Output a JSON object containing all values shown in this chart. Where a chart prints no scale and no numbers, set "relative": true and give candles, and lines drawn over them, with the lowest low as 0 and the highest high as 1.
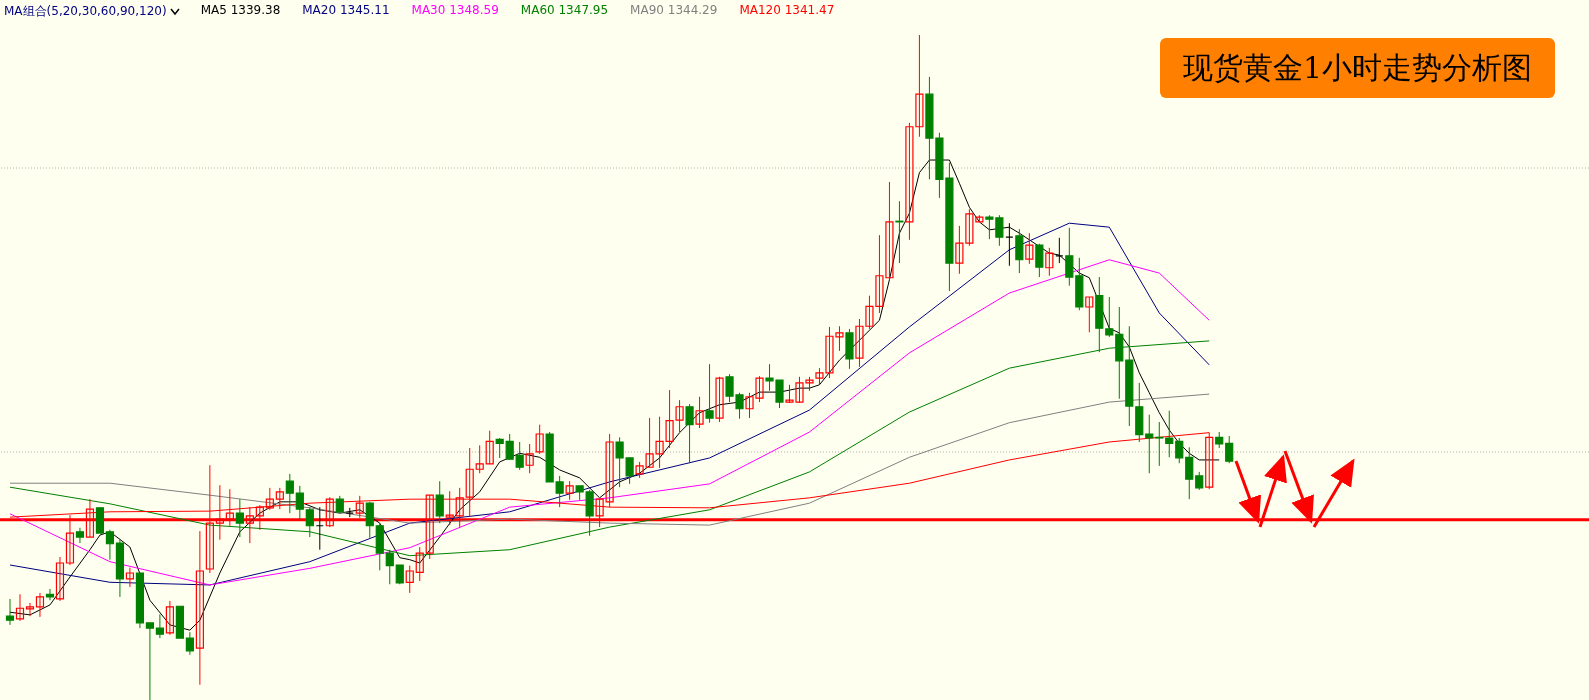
{
  "chart_data": {
    "type": "candlestick",
    "title": "现货黄金1小时走势分析图",
    "legend_title": "MA组合(5,20,30,60,90,120)",
    "relative": true,
    "categories": [
      null,
      null,
      null,
      null,
      null,
      null,
      null,
      null,
      null,
      null,
      null,
      null,
      null,
      null,
      null,
      null,
      null,
      null,
      null,
      null,
      null,
      null,
      null,
      null,
      null,
      null,
      null,
      null,
      null,
      null,
      null,
      null,
      null,
      null,
      null,
      null,
      null,
      null,
      null,
      null,
      null,
      null,
      null,
      null,
      null,
      null,
      null,
      null,
      null,
      null,
      null,
      null,
      null,
      null,
      null,
      null,
      null,
      null,
      null,
      null,
      null,
      null,
      null,
      null,
      null,
      null,
      null,
      null,
      null,
      null,
      null,
      null,
      null,
      null,
      null,
      null,
      null,
      null,
      null,
      null,
      null,
      null,
      null,
      null,
      null,
      null,
      null,
      null,
      null,
      null,
      null,
      null,
      null,
      null,
      null,
      null,
      null,
      null,
      null,
      null,
      null,
      null,
      null,
      null,
      null,
      null,
      null,
      null,
      null,
      null,
      null,
      null,
      null,
      null,
      null,
      null,
      null,
      null,
      null,
      null,
      null,
      null,
      null
    ],
    "ohlc": [
      [
        0.126,
        0.152,
        0.113,
        0.12
      ],
      [
        0.122,
        0.159,
        0.119,
        0.138
      ],
      [
        0.137,
        0.146,
        0.126,
        0.14
      ],
      [
        0.14,
        0.161,
        0.125,
        0.155
      ],
      [
        0.159,
        0.167,
        0.15,
        0.155
      ],
      [
        0.152,
        0.215,
        0.149,
        0.206
      ],
      [
        0.206,
        0.278,
        0.203,
        0.251
      ],
      [
        0.253,
        0.259,
        0.236,
        0.245
      ],
      [
        0.245,
        0.302,
        0.245,
        0.287
      ],
      [
        0.289,
        0.29,
        0.251,
        0.251
      ],
      [
        0.253,
        0.256,
        0.211,
        0.235
      ],
      [
        0.236,
        0.241,
        0.155,
        0.182
      ],
      [
        0.182,
        0.199,
        0.17,
        0.191
      ],
      [
        0.191,
        0.192,
        0.108,
        0.116
      ],
      [
        0.116,
        0.116,
        0,
        0.108
      ],
      [
        0.108,
        0.129,
        0.093,
        0.099
      ],
      [
        0.101,
        0.149,
        0.098,
        0.14
      ],
      [
        0.141,
        0.141,
        0.093,
        0.093
      ],
      [
        0.093,
        0.102,
        0.068,
        0.074
      ],
      [
        0.078,
        0.254,
        0.023,
        0.194
      ],
      [
        0.197,
        0.353,
        0.191,
        0.266
      ],
      [
        0.266,
        0.323,
        0.241,
        0.272
      ],
      [
        0.272,
        0.317,
        0.262,
        0.281
      ],
      [
        0.281,
        0.302,
        0.245,
        0.266
      ],
      [
        0.266,
        0.29,
        0.236,
        0.277
      ],
      [
        0.277,
        0.293,
        0.256,
        0.29
      ],
      [
        0.289,
        0.319,
        0.286,
        0.302
      ],
      [
        0.302,
        0.319,
        0.287,
        0.313
      ],
      [
        0.329,
        0.34,
        0.281,
        0.311
      ],
      [
        0.311,
        0.322,
        0.271,
        0.287
      ],
      [
        0.286,
        0.29,
        0.245,
        0.262
      ],
      [
        0.262,
        0.29,
        0.226,
        0.262
      ],
      [
        0.262,
        0.305,
        0.26,
        0.302
      ],
      [
        0.302,
        0.307,
        0.281,
        0.283
      ],
      [
        0.281,
        0.289,
        0.275,
        0.281
      ],
      [
        0.281,
        0.307,
        0.274,
        0.296
      ],
      [
        0.296,
        0.298,
        0.244,
        0.262
      ],
      [
        0.262,
        0.265,
        0.195,
        0.221
      ],
      [
        0.221,
        0.226,
        0.174,
        0.202
      ],
      [
        0.203,
        0.203,
        0.174,
        0.176
      ],
      [
        0.177,
        0.202,
        0.161,
        0.194
      ],
      [
        0.192,
        0.23,
        0.179,
        0.221
      ],
      [
        0.221,
        0.308,
        0.212,
        0.308
      ],
      [
        0.308,
        0.329,
        0.266,
        0.277
      ],
      [
        0.275,
        0.314,
        0.263,
        0.278
      ],
      [
        0.277,
        0.319,
        0.26,
        0.304
      ],
      [
        0.305,
        0.379,
        0.275,
        0.347
      ],
      [
        0.347,
        0.383,
        0.341,
        0.355
      ],
      [
        0.355,
        0.405,
        0.355,
        0.389
      ],
      [
        0.392,
        0.394,
        0.364,
        0.386
      ],
      [
        0.389,
        0.4,
        0.362,
        0.362
      ],
      [
        0.368,
        0.388,
        0.346,
        0.35
      ],
      [
        0.353,
        0.385,
        0.341,
        0.37
      ],
      [
        0.373,
        0.414,
        0.37,
        0.4
      ],
      [
        0.4,
        0.403,
        0.328,
        0.328
      ],
      [
        0.328,
        0.337,
        0.29,
        0.311
      ],
      [
        0.311,
        0.329,
        0.301,
        0.322
      ],
      [
        0.322,
        0.322,
        0.301,
        0.313
      ],
      [
        0.313,
        0.316,
        0.247,
        0.277
      ],
      [
        0.277,
        0.302,
        0.26,
        0.302
      ],
      [
        0.298,
        0.4,
        0.29,
        0.388
      ],
      [
        0.388,
        0.395,
        0.32,
        0.364
      ],
      [
        0.364,
        0.365,
        0.325,
        0.337
      ],
      [
        0.34,
        0.358,
        0.334,
        0.352
      ],
      [
        0.35,
        0.424,
        0.35,
        0.37
      ],
      [
        0.37,
        0.426,
        0.349,
        0.389
      ],
      [
        0.389,
        0.466,
        0.379,
        0.42
      ],
      [
        0.421,
        0.451,
        0.403,
        0.441
      ],
      [
        0.441,
        0.445,
        0.356,
        0.414
      ],
      [
        0.415,
        0.456,
        0.409,
        0.435
      ],
      [
        0.435,
        0.505,
        0.417,
        0.424
      ],
      [
        0.424,
        0.486,
        0.418,
        0.484
      ],
      [
        0.486,
        0.49,
        0.448,
        0.457
      ],
      [
        0.459,
        0.462,
        0.423,
        0.438
      ],
      [
        0.438,
        0.462,
        0.424,
        0.456
      ],
      [
        0.454,
        0.487,
        0.448,
        0.484
      ],
      [
        0.484,
        0.505,
        0.465,
        0.48
      ],
      [
        0.481,
        0.481,
        0.439,
        0.448
      ],
      [
        0.448,
        0.474,
        0.447,
        0.451
      ],
      [
        0.448,
        0.486,
        0.447,
        0.477
      ],
      [
        0.477,
        0.486,
        0.465,
        0.481
      ],
      [
        0.484,
        0.499,
        0.475,
        0.492
      ],
      [
        0.492,
        0.561,
        0.484,
        0.547
      ],
      [
        0.546,
        0.562,
        0.525,
        0.552
      ],
      [
        0.552,
        0.558,
        0.498,
        0.513
      ],
      [
        0.514,
        0.573,
        0.501,
        0.562
      ],
      [
        0.562,
        0.608,
        0.558,
        0.592
      ],
      [
        0.592,
        0.699,
        0.582,
        0.638
      ],
      [
        0.635,
        0.779,
        0.63,
        0.719
      ],
      [
        0.72,
        0.75,
        0.657,
        0.719
      ],
      [
        0.719,
        0.868,
        0.692,
        0.862
      ],
      [
        0.862,
        1,
        0.847,
        0.911
      ],
      [
        0.911,
        0.937,
        0.783,
        0.845
      ],
      [
        0.845,
        0.853,
        0.755,
        0.783
      ],
      [
        0.785,
        0.808,
        0.615,
        0.657
      ],
      [
        0.657,
        0.713,
        0.641,
        0.687
      ],
      [
        0.687,
        0.738,
        0.683,
        0.731
      ],
      [
        0.719,
        0.729,
        0.719,
        0.726
      ],
      [
        0.726,
        0.729,
        0.693,
        0.723
      ],
      [
        0.725,
        0.729,
        0.683,
        0.696
      ],
      [
        0.696,
        0.717,
        0.653,
        0.696
      ],
      [
        0.698,
        0.708,
        0.642,
        0.662
      ],
      [
        0.663,
        0.702,
        0.656,
        0.684
      ],
      [
        0.684,
        0.686,
        0.636,
        0.651
      ],
      [
        0.65,
        0.68,
        0.638,
        0.672
      ],
      [
        0.668,
        0.695,
        0.657,
        0.668
      ],
      [
        0.668,
        0.71,
        0.623,
        0.636
      ],
      [
        0.638,
        0.665,
        0.586,
        0.591
      ],
      [
        0.591,
        0.606,
        0.553,
        0.606
      ],
      [
        0.608,
        0.636,
        0.523,
        0.559
      ],
      [
        0.558,
        0.606,
        0.546,
        0.549
      ],
      [
        0.55,
        0.591,
        0.453,
        0.51
      ],
      [
        0.511,
        0.562,
        0.412,
        0.442
      ],
      [
        0.441,
        0.477,
        0.388,
        0.399
      ],
      [
        0.4,
        0.429,
        0.341,
        0.394
      ],
      [
        0.395,
        0.418,
        0.352,
        0.394
      ],
      [
        0.394,
        0.435,
        0.365,
        0.386
      ],
      [
        0.389,
        0.394,
        0.356,
        0.364
      ],
      [
        0.365,
        0.38,
        0.302,
        0.332
      ],
      [
        0.337,
        0.343,
        0.316,
        0.319
      ],
      [
        0.32,
        0.402,
        0.317,
        0.395
      ],
      [
        0.395,
        0.403,
        0.379,
        0.385
      ],
      [
        0.386,
        0.397,
        0.356,
        0.359
      ]
    ],
    "colors": [
      "#008000",
      "#ff0000",
      "#ff0000",
      "#ff0000",
      "#008000",
      "#ff0000",
      "#ff0000",
      "#008000",
      "#ff0000",
      "#008000",
      "#008000",
      "#008000",
      "#ff0000",
      "#008000",
      "#008000",
      "#008000",
      "#ff0000",
      "#008000",
      "#008000",
      "#ff0000",
      "#ff0000",
      "#ff0000",
      "#ff0000",
      "#008000",
      "#ff0000",
      "#ff0000",
      "#ff0000",
      "#ff0000",
      "#008000",
      "#008000",
      "#008000",
      "#000000",
      "#ff0000",
      "#008000",
      "#000000",
      "#ff0000",
      "#008000",
      "#008000",
      "#008000",
      "#008000",
      "#ff0000",
      "#ff0000",
      "#ff0000",
      "#008000",
      "#ff0000",
      "#ff0000",
      "#ff0000",
      "#ff0000",
      "#ff0000",
      "#008000",
      "#008000",
      "#008000",
      "#ff0000",
      "#ff0000",
      "#008000",
      "#008000",
      "#ff0000",
      "#008000",
      "#008000",
      "#ff0000",
      "#ff0000",
      "#008000",
      "#008000",
      "#ff0000",
      "#ff0000",
      "#ff0000",
      "#ff0000",
      "#ff0000",
      "#008000",
      "#ff0000",
      "#008000",
      "#ff0000",
      "#008000",
      "#008000",
      "#ff0000",
      "#ff0000",
      "#008000",
      "#008000",
      "#ff0000",
      "#ff0000",
      "#ff0000",
      "#ff0000",
      "#ff0000",
      "#ff0000",
      "#008000",
      "#ff0000",
      "#ff0000",
      "#ff0000",
      "#ff0000",
      "#008000",
      "#ff0000",
      "#ff0000",
      "#008000",
      "#008000",
      "#008000",
      "#ff0000",
      "#ff0000",
      "#ff0000",
      "#008000",
      "#008000",
      "#000000",
      "#008000",
      "#ff0000",
      "#008000",
      "#ff0000",
      "#000000",
      "#008000",
      "#008000",
      "#ff0000",
      "#008000",
      "#008000",
      "#008000",
      "#008000",
      "#008000",
      "#008000",
      "#008000",
      "#008000",
      "#008000",
      "#008000",
      "#008000",
      "#ff0000",
      "#008000",
      "#008000"
    ],
    "series": [
      {
        "name": "MA5 1339.38",
        "type": "line",
        "color": "#000000",
        "values": [
          0.132,
          null,
          0.128,
          null,
          0.143,
          null,
          0.185,
          null,
          0.226,
          0.248,
          0.253,
          null,
          0.23,
          null,
          0.15,
          null,
          0.113,
          null,
          0.105,
          0.12,
          null,
          0.191,
          null,
          0.253,
          null,
          0.281,
          null,
          0.298,
          null,
          0.298,
          null,
          0.286,
          null,
          0.281,
          null,
          0.286,
          null,
          0.266,
          null,
          0.214,
          0.211,
          0.206,
          null,
          0.245,
          null,
          0.286,
          null,
          0.313,
          null,
          0.358,
          null,
          0.371,
          null,
          0.365,
          null,
          0.346,
          null,
          0.334,
          null,
          0.304,
          null,
          0.328,
          null,
          0.341,
          null,
          0.364,
          null,
          0.402,
          null,
          0.432,
          null,
          0.444,
          null,
          0.448,
          null,
          0.463,
          null,
          0.463,
          null,
          0.469,
          0.469,
          0.474,
          null,
          0.511,
          null,
          0.541,
          null,
          0.571,
          0.632,
          0.702,
          0.732,
          0.793,
          0.812,
          null,
          0.812,
          0.777,
          0.741,
          0.719,
          0.707,
          null,
          0.711,
          0.702,
          0.692,
          null,
          0.672,
          0.669,
          null,
          0.642,
          0.635,
          null,
          0.559,
          0.552,
          0.531,
          0.492,
          0.462,
          0.432,
          0.406,
          0.386,
          0.371,
          0.361,
          0.361,
          0.361,
          null
        ]
      },
      {
        "name": "MA20 1345.11",
        "type": "line",
        "color": "#000080",
        "values": [
          0.203,
          null,
          null,
          null,
          null,
          null,
          null,
          null,
          null,
          null,
          0.177,
          null,
          null,
          null,
          null,
          null,
          null,
          null,
          null,
          null,
          0.173,
          null,
          null,
          null,
          null,
          null,
          null,
          null,
          null,
          null,
          0.208,
          null,
          null,
          null,
          null,
          null,
          null,
          null,
          null,
          null,
          0.266,
          null,
          null,
          null,
          null,
          null,
          null,
          null,
          null,
          null,
          0.283,
          null,
          null,
          null,
          null,
          null,
          null,
          null,
          null,
          null,
          0.328,
          null,
          null,
          null,
          null,
          null,
          null,
          null,
          null,
          null,
          0.364,
          null,
          null,
          null,
          null,
          null,
          null,
          null,
          null,
          null,
          0.436,
          null,
          null,
          null,
          null,
          null,
          null,
          null,
          null,
          null,
          0.561,
          null,
          null,
          null,
          null,
          null,
          null,
          null,
          null,
          null,
          0.677,
          null,
          null,
          null,
          null,
          null,
          0.717,
          null,
          null,
          null,
          0.711,
          null,
          null,
          null,
          null,
          0.582,
          null,
          null,
          null,
          null,
          0.504,
          null,
          null
        ]
      },
      {
        "name": "MA30 1348.59",
        "type": "line",
        "color": "#ff00ff",
        "values": [
          0.28,
          null,
          null,
          null,
          null,
          null,
          null,
          null,
          null,
          null,
          0.208,
          null,
          null,
          null,
          null,
          null,
          null,
          null,
          null,
          null,
          0.173,
          null,
          null,
          null,
          null,
          null,
          null,
          null,
          null,
          null,
          0.198,
          null,
          null,
          null,
          null,
          null,
          null,
          null,
          null,
          null,
          0.229,
          null,
          null,
          null,
          null,
          null,
          null,
          null,
          null,
          null,
          0.29,
          null,
          null,
          null,
          null,
          null,
          null,
          null,
          null,
          null,
          0.304,
          null,
          null,
          null,
          null,
          null,
          null,
          null,
          null,
          null,
          0.325,
          null,
          null,
          null,
          null,
          null,
          null,
          null,
          null,
          null,
          0.403,
          null,
          null,
          null,
          null,
          null,
          null,
          null,
          null,
          null,
          0.522,
          null,
          null,
          null,
          null,
          null,
          null,
          null,
          null,
          null,
          0.612,
          null,
          null,
          null,
          null,
          null,
          null,
          null,
          null,
          null,
          0.662,
          null,
          null,
          null,
          null,
          0.642,
          null,
          null,
          null,
          null,
          0.571,
          null,
          null
        ]
      },
      {
        "name": "MA60 1347.95",
        "type": "line",
        "color": "#008000",
        "values": [
          0.32,
          null,
          null,
          null,
          null,
          null,
          null,
          null,
          null,
          null,
          0.295,
          null,
          null,
          null,
          null,
          null,
          null,
          null,
          null,
          null,
          0.263,
          null,
          null,
          null,
          null,
          null,
          null,
          null,
          null,
          null,
          0.253,
          null,
          null,
          null,
          null,
          null,
          null,
          null,
          null,
          null,
          0.217,
          null,
          null,
          null,
          null,
          null,
          null,
          null,
          null,
          null,
          0.226,
          null,
          null,
          null,
          null,
          null,
          null,
          null,
          null,
          null,
          0.26,
          null,
          null,
          null,
          null,
          null,
          null,
          null,
          null,
          null,
          0.286,
          null,
          null,
          null,
          null,
          null,
          null,
          null,
          null,
          null,
          0.343,
          null,
          null,
          null,
          null,
          null,
          null,
          null,
          null,
          null,
          0.433,
          null,
          null,
          null,
          null,
          null,
          null,
          null,
          null,
          null,
          0.499,
          null,
          null,
          null,
          null,
          null,
          null,
          null,
          null,
          null,
          0.529,
          null,
          null,
          null,
          null,
          null,
          null,
          null,
          null,
          null,
          0.54,
          null,
          null
        ]
      },
      {
        "name": "MA90 1344.29",
        "type": "line",
        "color": "#808080",
        "values": [
          0.326,
          null,
          null,
          null,
          null,
          null,
          null,
          null,
          null,
          null,
          0.326,
          null,
          null,
          null,
          null,
          null,
          null,
          null,
          null,
          null,
          0.308,
          null,
          null,
          null,
          null,
          null,
          null,
          null,
          null,
          null,
          0.289,
          null,
          null,
          null,
          null,
          null,
          null,
          null,
          null,
          null,
          0.266,
          null,
          null,
          null,
          null,
          null,
          null,
          null,
          null,
          null,
          0.272,
          null,
          null,
          null,
          null,
          null,
          null,
          null,
          null,
          null,
          0.266,
          null,
          null,
          null,
          null,
          null,
          null,
          null,
          null,
          null,
          0.263,
          null,
          null,
          null,
          null,
          null,
          null,
          null,
          null,
          null,
          0.296,
          null,
          null,
          null,
          null,
          null,
          null,
          null,
          null,
          null,
          0.365,
          null,
          null,
          null,
          null,
          null,
          null,
          null,
          null,
          null,
          0.417,
          null,
          null,
          null,
          null,
          null,
          null,
          null,
          null,
          null,
          0.448,
          null,
          null,
          null,
          null,
          null,
          null,
          null,
          null,
          null,
          0.46,
          null,
          null
        ]
      },
      {
        "name": "MA120 1341.47",
        "type": "line",
        "color": "#ff0000",
        "values": [
          0.275,
          null,
          null,
          null,
          null,
          null,
          null,
          null,
          null,
          null,
          0.283,
          null,
          null,
          null,
          null,
          null,
          null,
          null,
          null,
          null,
          0.284,
          null,
          null,
          null,
          null,
          null,
          null,
          null,
          null,
          null,
          0.296,
          null,
          null,
          null,
          null,
          null,
          null,
          null,
          null,
          null,
          0.302,
          null,
          null,
          null,
          null,
          null,
          null,
          null,
          null,
          null,
          0.302,
          null,
          null,
          null,
          null,
          null,
          null,
          null,
          null,
          null,
          0.29,
          null,
          null,
          null,
          null,
          null,
          null,
          null,
          null,
          null,
          0.289,
          null,
          null,
          null,
          null,
          null,
          null,
          null,
          null,
          null,
          0.304,
          null,
          null,
          null,
          null,
          null,
          null,
          null,
          null,
          null,
          0.326,
          null,
          null,
          null,
          null,
          null,
          null,
          null,
          null,
          null,
          0.361,
          null,
          null,
          null,
          null,
          null,
          null,
          null,
          null,
          null,
          0.388,
          null,
          null,
          null,
          null,
          null,
          null,
          null,
          null,
          null,
          0.402,
          null,
          null
        ]
      }
    ],
    "ref_lines": [
      {
        "axis": "y",
        "value": 0.271,
        "color": "#ff0000",
        "line_style": "solid"
      },
      {
        "axis": "y",
        "value": 0.8,
        "color": "#b0b0b0",
        "line_style": "dotted"
      },
      {
        "axis": "y",
        "value": 0.373,
        "color": "#b0b0b0",
        "line_style": "dotted"
      }
    ]
  }
}
